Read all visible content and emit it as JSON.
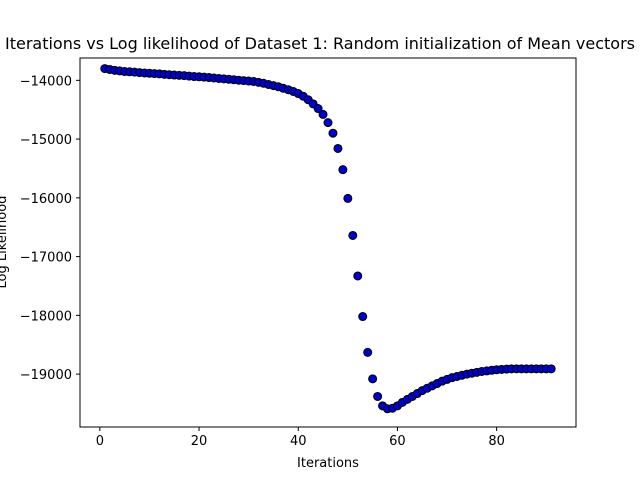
{
  "chart_data": {
    "type": "scatter",
    "title": "Iterations vs Log likelihood of Dataset 1: Random initialization of Mean vectors",
    "xlabel": "Iterations",
    "ylabel": "Log Likelihood",
    "xlim": [
      -4,
      96
    ],
    "ylim": [
      -19900,
      -13620
    ],
    "xticks": [
      0,
      20,
      40,
      60,
      80
    ],
    "xtick_labels": [
      "0",
      "20",
      "40",
      "60",
      "80"
    ],
    "yticks": [
      -14000,
      -15000,
      -16000,
      -17000,
      -18000,
      -19000
    ],
    "ytick_labels": [
      "−14000",
      "−15000",
      "−16000",
      "−17000",
      "−18000",
      "−19000"
    ],
    "grid": false,
    "marker_color": "#0000cc",
    "marker_edge_color": "#000000",
    "x": [
      1,
      2,
      3,
      4,
      5,
      6,
      7,
      8,
      9,
      10,
      11,
      12,
      13,
      14,
      15,
      16,
      17,
      18,
      19,
      20,
      21,
      22,
      23,
      24,
      25,
      26,
      27,
      28,
      29,
      30,
      31,
      32,
      33,
      34,
      35,
      36,
      37,
      38,
      39,
      40,
      41,
      42,
      43,
      44,
      45,
      46,
      47,
      48,
      49,
      50,
      51,
      52,
      53,
      54,
      55,
      56,
      57,
      58,
      59,
      60,
      61,
      62,
      63,
      64,
      65,
      66,
      67,
      68,
      69,
      70,
      71,
      72,
      73,
      74,
      75,
      76,
      77,
      78,
      79,
      80,
      81,
      82,
      83,
      84,
      85,
      86,
      87,
      88,
      89,
      90,
      91
    ],
    "y": [
      -13800,
      -13815,
      -13830,
      -13840,
      -13850,
      -13855,
      -13860,
      -13868,
      -13875,
      -13880,
      -13885,
      -13890,
      -13898,
      -13905,
      -13910,
      -13915,
      -13920,
      -13928,
      -13935,
      -13940,
      -13945,
      -13952,
      -13960,
      -13968,
      -13975,
      -13982,
      -13990,
      -13998,
      -14005,
      -14012,
      -14020,
      -14035,
      -14050,
      -14070,
      -14090,
      -14110,
      -14135,
      -14160,
      -14190,
      -14225,
      -14270,
      -14330,
      -14400,
      -14480,
      -14580,
      -14720,
      -14900,
      -15160,
      -15520,
      -16010,
      -16640,
      -17330,
      -18020,
      -18630,
      -19080,
      -19380,
      -19540,
      -19590,
      -19580,
      -19540,
      -19480,
      -19430,
      -19380,
      -19330,
      -19280,
      -19240,
      -19200,
      -19160,
      -19120,
      -19090,
      -19060,
      -19040,
      -19020,
      -19000,
      -18985,
      -18970,
      -18955,
      -18945,
      -18935,
      -18925,
      -18920,
      -18915,
      -18910,
      -18910,
      -18910,
      -18910,
      -18910,
      -18910,
      -18910,
      -18910,
      -18910
    ]
  }
}
